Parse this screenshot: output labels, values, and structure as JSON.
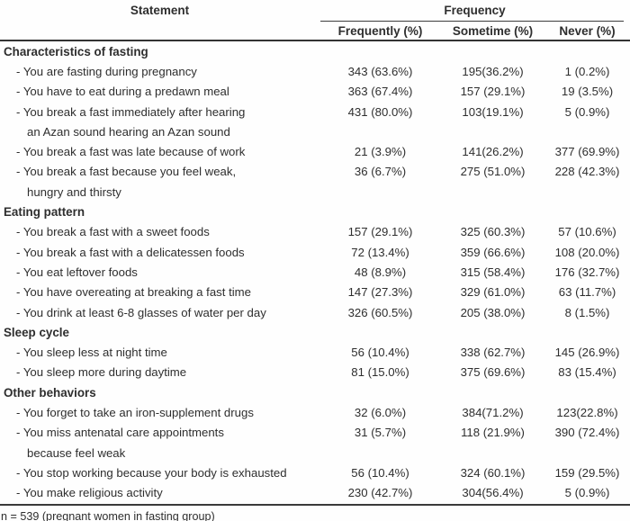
{
  "table": {
    "header": {
      "statement_label": "Statement",
      "frequency_label": "Frequency",
      "columns": [
        "Frequently (%)",
        "Sometime (%)",
        "Never (%)"
      ]
    },
    "rows": [
      {
        "type": "section",
        "text": "Characteristics of fasting"
      },
      {
        "type": "item",
        "text": "- You are fasting during pregnancy",
        "frequently": "343 (63.6%)",
        "sometime": "195(36.2%)",
        "never": "1 (0.2%)"
      },
      {
        "type": "item",
        "text": "- You have to eat during a predawn meal",
        "frequently": "363 (67.4%)",
        "sometime": "157 (29.1%)",
        "never": "19 (3.5%)"
      },
      {
        "type": "item",
        "text": "- You break a fast immediately after hearing",
        "frequently": "431 (80.0%)",
        "sometime": "103(19.1%)",
        "never": "5 (0.9%)"
      },
      {
        "type": "cont",
        "text": "an Azan sound hearing an Azan sound"
      },
      {
        "type": "item",
        "text": "- You break a fast was late because of work",
        "frequently": "21 (3.9%)",
        "sometime": "141(26.2%)",
        "never": "377 (69.9%)"
      },
      {
        "type": "item",
        "text": "- You break a fast because you feel weak,",
        "frequently": "36 (6.7%)",
        "sometime": "275 (51.0%)",
        "never": "228 (42.3%)"
      },
      {
        "type": "cont",
        "text": "hungry and thirsty"
      },
      {
        "type": "section",
        "text": "Eating pattern"
      },
      {
        "type": "item",
        "text": "- You break a fast with a sweet foods",
        "frequently": "157 (29.1%)",
        "sometime": "325 (60.3%)",
        "never": "57 (10.6%)"
      },
      {
        "type": "item",
        "text": "- You break a fast with a delicatessen foods",
        "frequently": "72 (13.4%)",
        "sometime": "359 (66.6%)",
        "never": "108 (20.0%)"
      },
      {
        "type": "item",
        "text": "- You eat leftover foods",
        "frequently": "48 (8.9%)",
        "sometime": "315 (58.4%)",
        "never": "176 (32.7%)"
      },
      {
        "type": "item",
        "text": "- You have overeating at breaking a fast time",
        "frequently": "147 (27.3%)",
        "sometime": "329 (61.0%)",
        "never": "63 (11.7%)"
      },
      {
        "type": "item",
        "text": "- You drink at least 6-8 glasses of water per day",
        "frequently": "326 (60.5%)",
        "sometime": "205 (38.0%)",
        "never": "8 (1.5%)"
      },
      {
        "type": "section",
        "text": "Sleep cycle"
      },
      {
        "type": "item",
        "text": "- You sleep less at night time",
        "frequently": "56 (10.4%)",
        "sometime": "338 (62.7%)",
        "never": "145 (26.9%)"
      },
      {
        "type": "item",
        "text": "- You sleep more during daytime",
        "frequently": "81 (15.0%)",
        "sometime": "375 (69.6%)",
        "never": "83 (15.4%)"
      },
      {
        "type": "section",
        "text": "Other behaviors"
      },
      {
        "type": "item",
        "text": "- You forget to take an iron-supplement drugs",
        "frequently": "32 (6.0%)",
        "sometime": "384(71.2%)",
        "never": "123(22.8%)"
      },
      {
        "type": "item",
        "text": "- You miss antenatal care appointments",
        "frequently": "31 (5.7%)",
        "sometime": "118 (21.9%)",
        "never": "390 (72.4%)"
      },
      {
        "type": "cont",
        "text": "because feel weak"
      },
      {
        "type": "item",
        "text": "- You stop working because your body is exhausted",
        "frequently": "56 (10.4%)",
        "sometime": "324 (60.1%)",
        "never": "159 (29.5%)"
      },
      {
        "type": "item",
        "text": "- You make religious activity",
        "frequently": "230 (42.7%)",
        "sometime": "304(56.4%)",
        "never": "5 (0.9%)"
      }
    ],
    "footnote": "n = 539 (pregnant women in fasting group)"
  }
}
